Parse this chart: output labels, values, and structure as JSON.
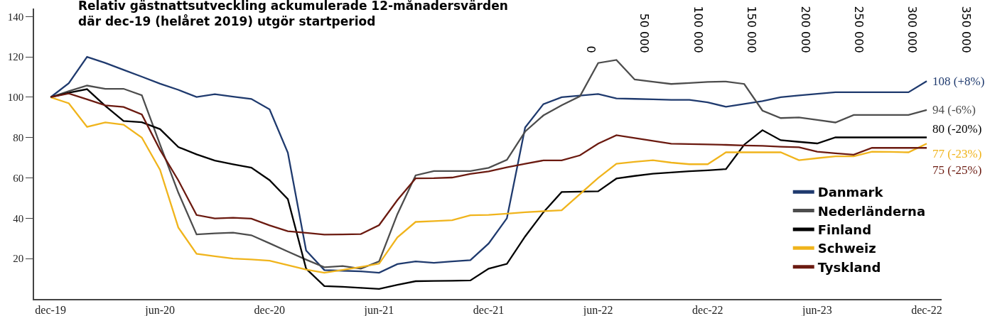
{
  "chart_data": {
    "type": "line",
    "title": "Relativ gästnattsutveckling ackumulerade 12-månadersvärden\ndär dec-19 (helåret 2019) utgör startperiod",
    "categories": [
      "dec-19",
      null,
      null,
      null,
      null,
      null,
      "jun-20",
      null,
      null,
      null,
      null,
      null,
      "dec-20",
      null,
      null,
      null,
      null,
      null,
      "jun-21",
      null,
      null,
      null,
      null,
      null,
      "dec-21",
      null,
      null,
      null,
      null,
      null,
      "jun-22",
      null,
      null,
      null,
      null,
      null,
      "dec-22",
      null,
      null,
      null,
      null,
      null,
      "jun-23",
      null,
      null,
      null,
      null,
      null,
      "dec-22"
    ],
    "series": [
      {
        "name": "Danmark",
        "color": "#1f3a6e",
        "values": [
          100,
          107,
          120,
          117,
          113.6,
          110.2,
          106.7,
          103.7,
          100.1,
          101.5,
          100.3,
          99.2,
          94,
          72.5,
          24,
          14.3,
          14,
          13.7,
          13,
          17.3,
          18.6,
          17.9,
          18.6,
          19.2,
          27.5,
          40,
          85,
          96.6,
          100,
          100.8,
          101.6,
          99.4,
          99.2,
          99,
          98.7,
          98.7,
          97.5,
          95.3,
          96.7,
          98.1,
          100,
          100.9,
          101.7,
          102.5,
          102.5,
          102.5,
          102.5,
          102.5,
          108
        ]
      },
      {
        "name": "Nederländerna",
        "color": "#4d4d4d",
        "values": [
          100,
          103,
          105.8,
          104.2,
          104.2,
          101,
          76.5,
          52.7,
          32,
          32.5,
          32.9,
          31.6,
          27.6,
          23.5,
          19.5,
          15.7,
          16.3,
          15,
          18.6,
          42,
          61.3,
          63.4,
          63.4,
          63.4,
          65,
          69,
          83,
          91,
          96,
          100.5,
          117,
          118.5,
          108.8,
          107.7,
          106.6,
          107.1,
          107.6,
          107.8,
          106.6,
          93.4,
          89.7,
          90,
          88.8,
          87.5,
          91.2,
          91.2,
          91.2,
          91.2,
          93.7
        ]
      },
      {
        "name": "Finland",
        "color": "#000000",
        "values": [
          100,
          102.2,
          104,
          95.7,
          88.2,
          87.6,
          84.2,
          75.3,
          71.7,
          68.6,
          66.8,
          65.1,
          58.9,
          49.5,
          15,
          6.4,
          6,
          5.5,
          5,
          7,
          8.8,
          8.9,
          9,
          9.2,
          15,
          17.4,
          31,
          43,
          53,
          53.2,
          53.4,
          59.7,
          61,
          62.1,
          62.7,
          63.3,
          63.8,
          64.4,
          76.5,
          83.7,
          78.7,
          77.9,
          77.1,
          80.1,
          80.1,
          80.1,
          80.1,
          80.1,
          80.1
        ]
      },
      {
        "name": "Schweiz",
        "color": "#f0b41c",
        "values": [
          100,
          97,
          85.3,
          87.5,
          86.4,
          80,
          64,
          35.4,
          22.4,
          21.2,
          20,
          19.6,
          19,
          16.8,
          14.6,
          13,
          14.4,
          15.9,
          17.5,
          30.5,
          38.2,
          38.6,
          39,
          41.5,
          41.7,
          42.3,
          43,
          43.5,
          44,
          52,
          60,
          67,
          68,
          68.8,
          67.6,
          66.8,
          66.8,
          72.7,
          72.7,
          72.7,
          72.7,
          68.8,
          69.8,
          70.7,
          70.7,
          73,
          72.9,
          72.7,
          77
        ]
      },
      {
        "name": "Tyskland",
        "color": "#6b1a10",
        "values": [
          100,
          101.9,
          99,
          96,
          95.2,
          91.5,
          73.9,
          58.8,
          41.6,
          39.9,
          40.3,
          39.8,
          36.5,
          33.6,
          32.8,
          31.9,
          32,
          32.2,
          36.6,
          49,
          59.8,
          59.9,
          60.2,
          62,
          63.2,
          65.3,
          67,
          68.7,
          68.7,
          71.2,
          77,
          81.2,
          79.8,
          78.4,
          77,
          76.8,
          76.6,
          76.4,
          76.1,
          75.9,
          75.5,
          75.2,
          73,
          72.2,
          71.5,
          74.9,
          74.9,
          74.9,
          74.9
        ]
      }
    ],
    "ylim": [
      0,
      144
    ],
    "yticks": [
      20,
      40,
      60,
      80,
      100,
      120,
      140
    ],
    "x2lim": [
      0,
      350000
    ],
    "x2ticks": [
      {
        "value": 0,
        "label": "0"
      },
      {
        "value": 50000,
        "label": "50 000"
      },
      {
        "value": 100000,
        "label": "100 000"
      },
      {
        "value": 150000,
        "label": "150 000"
      },
      {
        "value": 200000,
        "label": "200 000"
      },
      {
        "value": 250000,
        "label": "250 000"
      },
      {
        "value": 300000,
        "label": "300 000"
      },
      {
        "value": 350000,
        "label": "350 000"
      }
    ],
    "annotations": [
      "108 (+8%)",
      "94 (-6%)",
      "80 (-20%)",
      "77 (-23%)",
      "75 (-25%)"
    ],
    "legend": "bottom right",
    "marker": "none",
    "line_style": "solid"
  }
}
